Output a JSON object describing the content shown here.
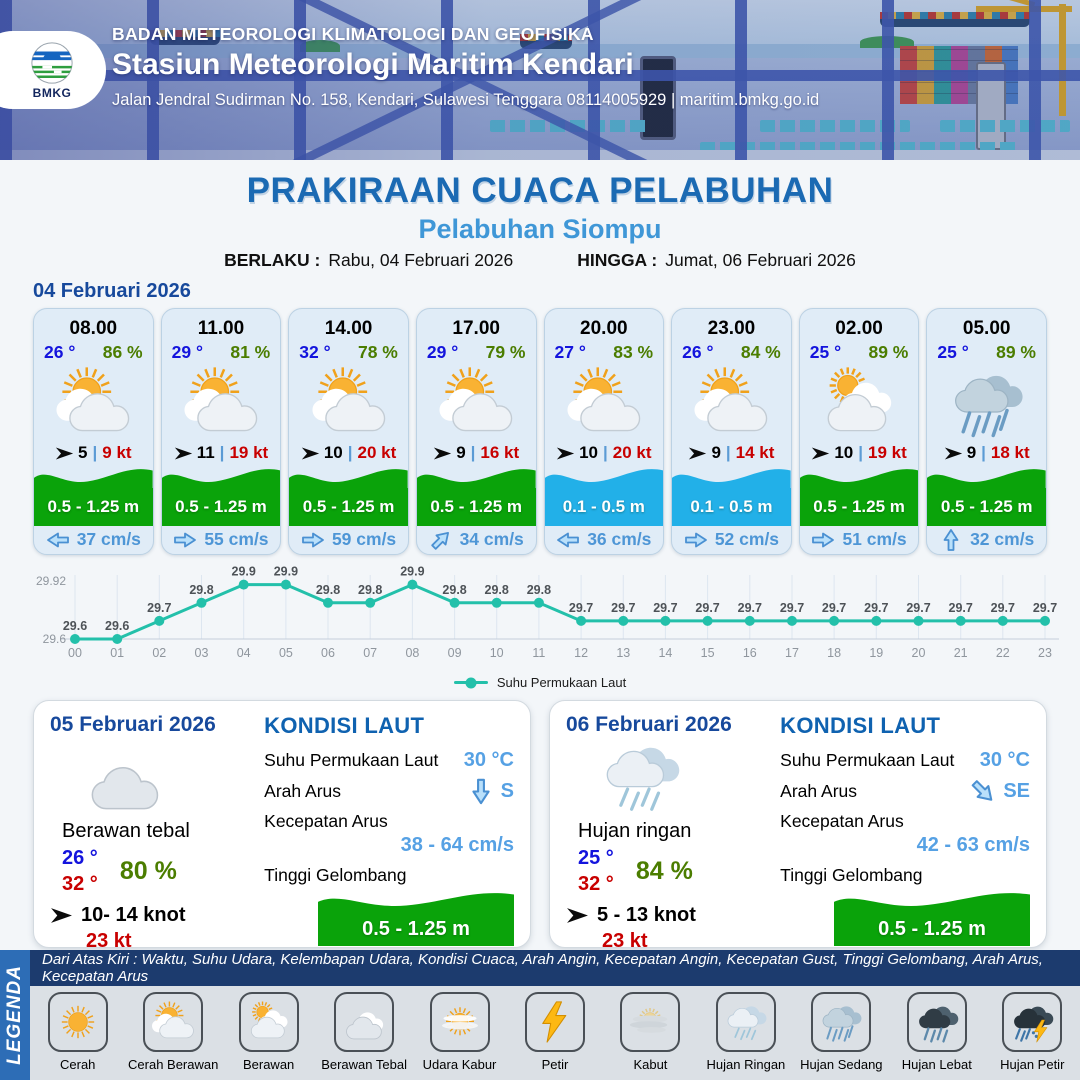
{
  "header": {
    "agency_line": "BADAN METEOROLOGI KLIMATOLOGI DAN GEOFISIKA",
    "station_line": "Stasiun Meteorologi Maritim Kendari",
    "address_line": "Jalan Jendral Sudirman No. 158, Kendari, Sulawesi Tenggara  08114005929 | maritim.bmkg.go.id",
    "logo_text": "BMKG"
  },
  "title": {
    "main": "PRAKIRAAN CUACA PELABUHAN",
    "subtitle": "Pelabuhan Siompu",
    "valid_from_label": "BERLAKU :",
    "valid_from": "Rabu, 04 Februari 2026",
    "valid_to_label": "HINGGA :",
    "valid_to": "Jumat, 06 Februari 2026"
  },
  "forecast_date": "04 Februari 2026",
  "hourly": [
    {
      "time": "08.00",
      "temp": "26 °",
      "humidity": "86 %",
      "icon": "cerah-berawan",
      "wind_speed": "5",
      "gust": "9 kt",
      "wave": "0.5 - 1.25 m",
      "wave_color": "green",
      "current_dir": "left",
      "current_speed": "37 cm/s"
    },
    {
      "time": "11.00",
      "temp": "29 °",
      "humidity": "81 %",
      "icon": "cerah-berawan",
      "wind_speed": "11",
      "gust": "19 kt",
      "wave": "0.5 - 1.25 m",
      "wave_color": "green",
      "current_dir": "right",
      "current_speed": "55 cm/s"
    },
    {
      "time": "14.00",
      "temp": "32 °",
      "humidity": "78 %",
      "icon": "cerah-berawan",
      "wind_speed": "10",
      "gust": "20 kt",
      "wave": "0.5 - 1.25 m",
      "wave_color": "green",
      "current_dir": "right",
      "current_speed": "59 cm/s"
    },
    {
      "time": "17.00",
      "temp": "29 °",
      "humidity": "79 %",
      "icon": "cerah-berawan",
      "wind_speed": "9",
      "gust": "16 kt",
      "wave": "0.5 - 1.25 m",
      "wave_color": "green",
      "current_dir": "up-right",
      "current_speed": "34 cm/s"
    },
    {
      "time": "20.00",
      "temp": "27 °",
      "humidity": "83 %",
      "icon": "cerah-berawan",
      "wind_speed": "10",
      "gust": "20 kt",
      "wave": "0.1 - 0.5 m",
      "wave_color": "blue",
      "current_dir": "left",
      "current_speed": "36 cm/s"
    },
    {
      "time": "23.00",
      "temp": "26 °",
      "humidity": "84 %",
      "icon": "cerah-berawan",
      "wind_speed": "9",
      "gust": "14 kt",
      "wave": "0.1 - 0.5 m",
      "wave_color": "blue",
      "current_dir": "right",
      "current_speed": "52 cm/s"
    },
    {
      "time": "02.00",
      "temp": "25 °",
      "humidity": "89 %",
      "icon": "berawan",
      "wind_speed": "10",
      "gust": "19 kt",
      "wave": "0.5 - 1.25 m",
      "wave_color": "green",
      "current_dir": "right",
      "current_speed": "51 cm/s"
    },
    {
      "time": "05.00",
      "temp": "25 °",
      "humidity": "89 %",
      "icon": "hujan-sedang",
      "wind_speed": "9",
      "gust": "18 kt",
      "wave": "0.5 - 1.25 m",
      "wave_color": "green",
      "current_dir": "up",
      "current_speed": "32 cm/s"
    }
  ],
  "chart_data": {
    "type": "line",
    "x": [
      "00",
      "01",
      "02",
      "03",
      "04",
      "05",
      "06",
      "07",
      "08",
      "09",
      "10",
      "11",
      "12",
      "13",
      "14",
      "15",
      "16",
      "17",
      "18",
      "19",
      "20",
      "21",
      "22",
      "23"
    ],
    "values": [
      29.6,
      29.6,
      29.7,
      29.8,
      29.9,
      29.9,
      29.8,
      29.8,
      29.9,
      29.8,
      29.8,
      29.8,
      29.7,
      29.7,
      29.7,
      29.7,
      29.7,
      29.7,
      29.7,
      29.7,
      29.7,
      29.7,
      29.7,
      29.7
    ],
    "series_name": "Suhu Permukaan Laut",
    "ylim": [
      29.6,
      29.92
    ],
    "y_ticks": [
      "29.92",
      "29.6"
    ],
    "line_color": "#23c0aa",
    "grid": true,
    "legend_position": "bottom"
  },
  "daily": [
    {
      "date": "05 Februari 2026",
      "icon": "berawan-tebal",
      "condition": "Berawan tebal",
      "temp_min": "26 °",
      "temp_max": "32 °",
      "humidity": "80 %",
      "wind": "10- 14 knot",
      "gust": "23 kt",
      "sea": {
        "heading": "KONDISI LAUT",
        "sst_label": "Suhu Permukaan Laut",
        "sst_value": "30 °C",
        "current_dir_label": "Arah Arus",
        "current_dir": "S",
        "current_dir_arrow": "down",
        "current_speed_label": "Kecepatan Arus",
        "current_speed": "38 - 64 cm/s",
        "wave_label": "Tinggi Gelombang",
        "wave_height": "0.5 - 1.25 m"
      }
    },
    {
      "date": "06 Februari 2026",
      "icon": "hujan-ringan",
      "condition": "Hujan ringan",
      "temp_min": "25 °",
      "temp_max": "32 °",
      "humidity": "84 %",
      "wind": "5 - 13 knot",
      "gust": "23 kt",
      "sea": {
        "heading": "KONDISI LAUT",
        "sst_label": "Suhu Permukaan Laut",
        "sst_value": "30 °C",
        "current_dir_label": "Arah Arus",
        "current_dir": "SE",
        "current_dir_arrow": "down-right",
        "current_speed_label": "Kecepatan Arus",
        "current_speed": "42 - 63 cm/s",
        "wave_label": "Tinggi Gelombang",
        "wave_height": "0.5 - 1.25 m"
      }
    }
  ],
  "legend": {
    "title": "LEGENDA",
    "caption": "Dari Atas Kiri : Waktu, Suhu Udara, Kelembapan Udara, Kondisi Cuaca, Arah Angin, Kecepatan Angin, Kecepatan Gust, Tinggi Gelombang, Arah Arus, Kecepatan Arus",
    "items": [
      {
        "label": "Cerah",
        "icon": "cerah"
      },
      {
        "label": "Cerah Berawan",
        "icon": "cerah-berawan"
      },
      {
        "label": "Berawan",
        "icon": "berawan"
      },
      {
        "label": "Berawan Tebal",
        "icon": "berawan-tebal"
      },
      {
        "label": "Udara Kabur",
        "icon": "udara-kabur"
      },
      {
        "label": "Petir",
        "icon": "petir"
      },
      {
        "label": "Kabut",
        "icon": "kabut"
      },
      {
        "label": "Hujan Ringan",
        "icon": "hujan-ringan"
      },
      {
        "label": "Hujan Sedang",
        "icon": "hujan-sedang"
      },
      {
        "label": "Hujan Lebat",
        "icon": "hujan-lebat"
      },
      {
        "label": "Hujan Petir",
        "icon": "hujan-petir"
      }
    ]
  },
  "colors": {
    "title_blue": "#1b6ab3",
    "subtitle_blue": "#3f97d7",
    "date_blue": "#17499c",
    "temp_blue": "#1414dd",
    "humidity_green": "#4b7d00",
    "gust_red": "#c80000",
    "wave_green": "#0aa30a",
    "wave_blue": "#22b0e8",
    "current_text_blue": "#4e96d6",
    "chart_teal": "#23c0aa"
  }
}
